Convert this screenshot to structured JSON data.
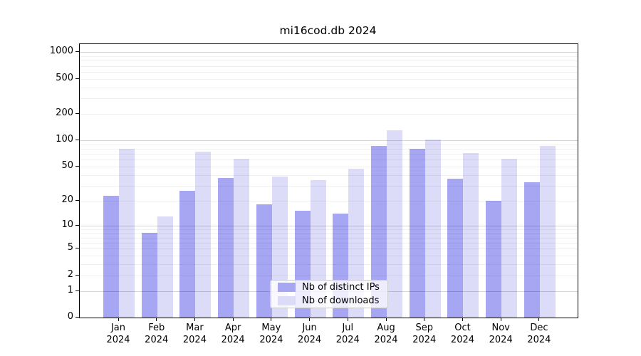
{
  "title": "mi16cod.db 2024",
  "chart_data": {
    "type": "bar",
    "categories": [
      "Jan",
      "Feb",
      "Mar",
      "Apr",
      "May",
      "Jun",
      "Jul",
      "Aug",
      "Sep",
      "Oct",
      "Nov",
      "Dec"
    ],
    "year_label": "2024",
    "series": [
      {
        "name": "Nb of distinct IPs",
        "color": "#a6a6f2",
        "values": [
          23,
          8,
          26,
          37,
          18,
          15,
          14,
          86,
          80,
          36,
          20,
          33
        ]
      },
      {
        "name": "Nb of downloads",
        "color": "#dcdcf8",
        "values": [
          80,
          13,
          74,
          62,
          38,
          35,
          47,
          130,
          102,
          71,
          62,
          87
        ]
      }
    ],
    "yscale": "log10(1+v)",
    "ylim": [
      0,
      1234
    ],
    "yticks": [
      0,
      1,
      2,
      5,
      10,
      20,
      50,
      100,
      200,
      500,
      1000
    ],
    "major_gridlines": [
      1,
      10,
      100,
      1000
    ],
    "minor_gridline_decades": [
      1,
      10,
      100
    ],
    "grid": true,
    "legend_position": "lower center"
  },
  "colors": {
    "background": "#ffffff",
    "axis_border": "#000000",
    "text": "#000000",
    "legend_border": "#c9c9c9"
  }
}
